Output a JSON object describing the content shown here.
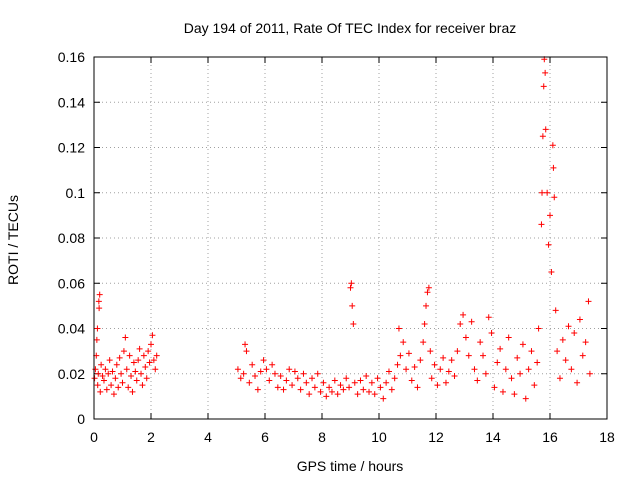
{
  "chart_data": {
    "type": "scatter",
    "title": "Day 194 of 2011, Rate Of TEC Index for receiver braz",
    "xlabel": "GPS time / hours",
    "ylabel": "ROTI / TECUs",
    "xlim": [
      0,
      18
    ],
    "ylim": [
      0,
      0.16
    ],
    "xticks": [
      "0",
      "2",
      "4",
      "6",
      "8",
      "10",
      "12",
      "14",
      "16",
      "18"
    ],
    "yticks": [
      "0",
      "0.02",
      "0.04",
      "0.06",
      "0.08",
      "0.1",
      "0.12",
      "0.14",
      "0.16"
    ],
    "grid": true,
    "marker": "plus",
    "color": "#ff0000",
    "series": [
      {
        "points": [
          [
            0.02,
            0.018
          ],
          [
            0.05,
            0.022
          ],
          [
            0.08,
            0.028
          ],
          [
            0.1,
            0.035
          ],
          [
            0.12,
            0.04
          ],
          [
            0.13,
            0.015
          ],
          [
            0.15,
            0.02
          ],
          [
            0.17,
            0.052
          ],
          [
            0.18,
            0.049
          ],
          [
            0.2,
            0.055
          ],
          [
            0.22,
            0.012
          ],
          [
            0.25,
            0.024
          ],
          [
            0.3,
            0.019
          ],
          [
            0.35,
            0.017
          ],
          [
            0.4,
            0.022
          ],
          [
            0.45,
            0.013
          ],
          [
            0.5,
            0.02
          ],
          [
            0.55,
            0.026
          ],
          [
            0.6,
            0.015
          ],
          [
            0.65,
            0.021
          ],
          [
            0.7,
            0.011
          ],
          [
            0.75,
            0.018
          ],
          [
            0.8,
            0.024
          ],
          [
            0.85,
            0.014
          ],
          [
            0.9,
            0.027
          ],
          [
            0.95,
            0.02
          ],
          [
            1.0,
            0.016
          ],
          [
            1.05,
            0.03
          ],
          [
            1.1,
            0.036
          ],
          [
            1.15,
            0.022
          ],
          [
            1.2,
            0.014
          ],
          [
            1.25,
            0.028
          ],
          [
            1.3,
            0.019
          ],
          [
            1.35,
            0.012
          ],
          [
            1.4,
            0.025
          ],
          [
            1.45,
            0.021
          ],
          [
            1.5,
            0.017
          ],
          [
            1.55,
            0.026
          ],
          [
            1.6,
            0.031
          ],
          [
            1.65,
            0.02
          ],
          [
            1.7,
            0.015
          ],
          [
            1.75,
            0.028
          ],
          [
            1.8,
            0.023
          ],
          [
            1.85,
            0.018
          ],
          [
            1.9,
            0.03
          ],
          [
            1.95,
            0.025
          ],
          [
            2.0,
            0.033
          ],
          [
            2.05,
            0.037
          ],
          [
            2.1,
            0.026
          ],
          [
            2.15,
            0.022
          ],
          [
            2.2,
            0.028
          ],
          [
            5.05,
            0.022
          ],
          [
            5.15,
            0.018
          ],
          [
            5.25,
            0.02
          ],
          [
            5.3,
            0.033
          ],
          [
            5.35,
            0.03
          ],
          [
            5.45,
            0.016
          ],
          [
            5.55,
            0.024
          ],
          [
            5.65,
            0.019
          ],
          [
            5.75,
            0.013
          ],
          [
            5.85,
            0.021
          ],
          [
            5.95,
            0.026
          ],
          [
            6.05,
            0.022
          ],
          [
            6.15,
            0.017
          ],
          [
            6.25,
            0.024
          ],
          [
            6.35,
            0.02
          ],
          [
            6.45,
            0.014
          ],
          [
            6.55,
            0.019
          ],
          [
            6.65,
            0.013
          ],
          [
            6.75,
            0.017
          ],
          [
            6.85,
            0.022
          ],
          [
            6.95,
            0.015
          ],
          [
            7.05,
            0.021
          ],
          [
            7.15,
            0.018
          ],
          [
            7.25,
            0.013
          ],
          [
            7.35,
            0.02
          ],
          [
            7.45,
            0.016
          ],
          [
            7.55,
            0.011
          ],
          [
            7.65,
            0.018
          ],
          [
            7.75,
            0.014
          ],
          [
            7.85,
            0.02
          ],
          [
            7.95,
            0.012
          ],
          [
            8.05,
            0.016
          ],
          [
            8.15,
            0.01
          ],
          [
            8.25,
            0.014
          ],
          [
            8.35,
            0.012
          ],
          [
            8.45,
            0.017
          ],
          [
            8.55,
            0.011
          ],
          [
            8.65,
            0.015
          ],
          [
            8.75,
            0.013
          ],
          [
            8.85,
            0.018
          ],
          [
            8.95,
            0.014
          ],
          [
            9.0,
            0.058
          ],
          [
            9.03,
            0.06
          ],
          [
            9.06,
            0.05
          ],
          [
            9.1,
            0.042
          ],
          [
            9.15,
            0.016
          ],
          [
            9.25,
            0.011
          ],
          [
            9.35,
            0.017
          ],
          [
            9.45,
            0.013
          ],
          [
            9.55,
            0.019
          ],
          [
            9.65,
            0.012
          ],
          [
            9.75,
            0.016
          ],
          [
            9.85,
            0.011
          ],
          [
            9.95,
            0.018
          ],
          [
            10.05,
            0.014
          ],
          [
            10.15,
            0.009
          ],
          [
            10.25,
            0.016
          ],
          [
            10.35,
            0.021
          ],
          [
            10.45,
            0.013
          ],
          [
            10.55,
            0.018
          ],
          [
            10.65,
            0.024
          ],
          [
            10.7,
            0.04
          ],
          [
            10.75,
            0.028
          ],
          [
            10.85,
            0.034
          ],
          [
            10.95,
            0.022
          ],
          [
            11.05,
            0.029
          ],
          [
            11.15,
            0.017
          ],
          [
            11.25,
            0.023
          ],
          [
            11.35,
            0.014
          ],
          [
            11.45,
            0.026
          ],
          [
            11.55,
            0.034
          ],
          [
            11.6,
            0.042
          ],
          [
            11.65,
            0.05
          ],
          [
            11.7,
            0.056
          ],
          [
            11.75,
            0.058
          ],
          [
            11.8,
            0.03
          ],
          [
            11.85,
            0.018
          ],
          [
            11.95,
            0.024
          ],
          [
            12.05,
            0.015
          ],
          [
            12.15,
            0.022
          ],
          [
            12.25,
            0.027
          ],
          [
            12.35,
            0.016
          ],
          [
            12.45,
            0.021
          ],
          [
            12.55,
            0.026
          ],
          [
            12.65,
            0.019
          ],
          [
            12.75,
            0.03
          ],
          [
            12.85,
            0.042
          ],
          [
            12.95,
            0.046
          ],
          [
            13.05,
            0.036
          ],
          [
            13.15,
            0.028
          ],
          [
            13.25,
            0.043
          ],
          [
            13.35,
            0.022
          ],
          [
            13.45,
            0.017
          ],
          [
            13.55,
            0.034
          ],
          [
            13.65,
            0.028
          ],
          [
            13.75,
            0.02
          ],
          [
            13.85,
            0.045
          ],
          [
            13.95,
            0.038
          ],
          [
            14.05,
            0.014
          ],
          [
            14.15,
            0.025
          ],
          [
            14.25,
            0.031
          ],
          [
            14.35,
            0.012
          ],
          [
            14.45,
            0.022
          ],
          [
            14.55,
            0.036
          ],
          [
            14.65,
            0.018
          ],
          [
            14.75,
            0.011
          ],
          [
            14.85,
            0.027
          ],
          [
            14.95,
            0.02
          ],
          [
            15.05,
            0.033
          ],
          [
            15.15,
            0.009
          ],
          [
            15.25,
            0.022
          ],
          [
            15.35,
            0.03
          ],
          [
            15.45,
            0.015
          ],
          [
            15.55,
            0.025
          ],
          [
            15.6,
            0.04
          ],
          [
            15.7,
            0.086
          ],
          [
            15.72,
            0.1
          ],
          [
            15.75,
            0.125
          ],
          [
            15.78,
            0.147
          ],
          [
            15.8,
            0.159
          ],
          [
            15.83,
            0.153
          ],
          [
            15.85,
            0.128
          ],
          [
            15.9,
            0.1
          ],
          [
            15.95,
            0.077
          ],
          [
            16.0,
            0.09
          ],
          [
            16.05,
            0.065
          ],
          [
            16.1,
            0.121
          ],
          [
            16.12,
            0.111
          ],
          [
            16.15,
            0.098
          ],
          [
            16.2,
            0.048
          ],
          [
            16.25,
            0.03
          ],
          [
            16.35,
            0.018
          ],
          [
            16.45,
            0.035
          ],
          [
            16.55,
            0.026
          ],
          [
            16.65,
            0.041
          ],
          [
            16.75,
            0.022
          ],
          [
            16.85,
            0.038
          ],
          [
            16.95,
            0.016
          ],
          [
            17.05,
            0.044
          ],
          [
            17.15,
            0.028
          ],
          [
            17.25,
            0.034
          ],
          [
            17.35,
            0.052
          ],
          [
            17.4,
            0.02
          ]
        ]
      }
    ]
  }
}
